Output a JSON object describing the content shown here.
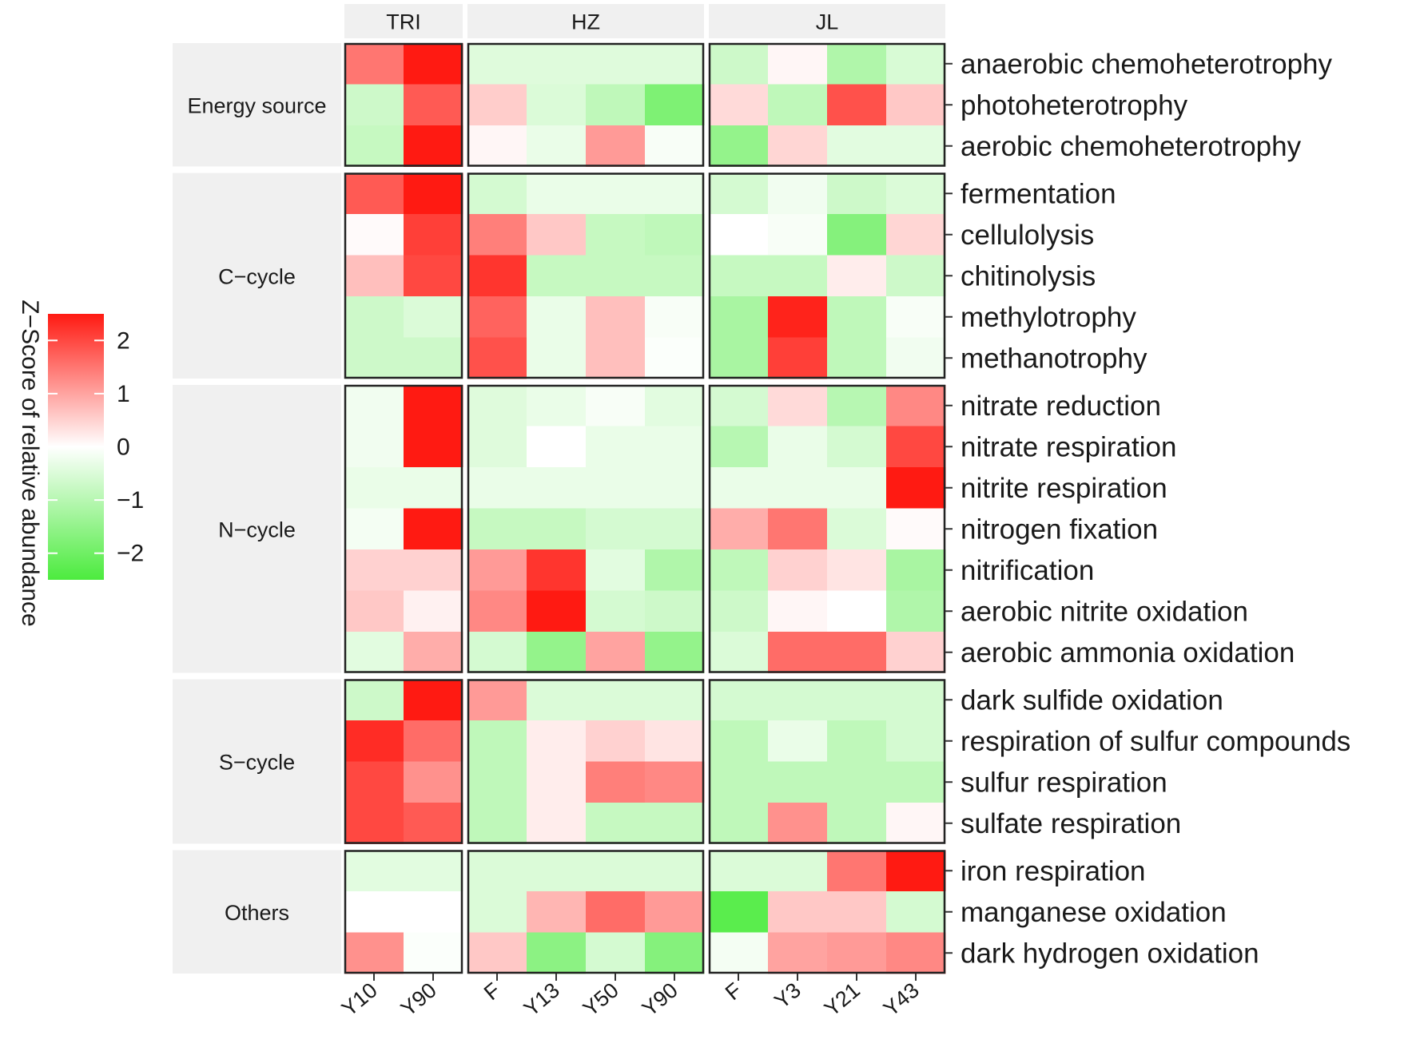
{
  "chart_data": {
    "type": "heatmap",
    "title": "",
    "legend": {
      "title": "Z−Score of relative abundance",
      "ticks": [
        2,
        1,
        0,
        -1,
        -2
      ],
      "tick_labels": [
        "2",
        "1",
        "0",
        "−1",
        "−2"
      ],
      "range": [
        -2.5,
        2.5
      ],
      "colors": {
        "low": "#4ceb3e",
        "mid": "#ffffff",
        "high": "#ff1a12"
      }
    },
    "column_groups": [
      {
        "name": "TRI",
        "columns": [
          "Y10",
          "Y90"
        ]
      },
      {
        "name": "HZ",
        "columns": [
          "F",
          "Y13",
          "Y50",
          "Y90"
        ]
      },
      {
        "name": "JL",
        "columns": [
          "F",
          "Y3",
          "Y21",
          "Y43"
        ]
      }
    ],
    "row_groups": [
      {
        "name": "Energy source",
        "rows": [
          "anaerobic chemoheterotrophy",
          "photoheterotrophy",
          "aerobic chemoheterotrophy"
        ],
        "values": [
          [
            1.5,
            2.8,
            -0.45,
            -0.45,
            -0.45,
            -0.45,
            -0.7,
            0.1,
            -1.1,
            -0.55
          ],
          [
            -0.7,
            1.8,
            0.55,
            -0.5,
            -0.9,
            -1.8,
            0.4,
            -0.9,
            1.9,
            0.6
          ],
          [
            -0.8,
            2.9,
            0.1,
            -0.3,
            1.1,
            -0.1,
            -1.5,
            0.45,
            -0.4,
            -0.4
          ]
        ]
      },
      {
        "name": "C−cycle",
        "rows": [
          "fermentation",
          "cellulolysis",
          "chitinolysis",
          "methylotrophy",
          "methanotrophy"
        ],
        "values": [
          [
            1.8,
            2.8,
            -0.6,
            -0.3,
            -0.3,
            -0.3,
            -0.6,
            -0.2,
            -0.7,
            -0.5
          ],
          [
            0.05,
            2.1,
            1.4,
            0.6,
            -0.8,
            -0.9,
            0.0,
            -0.1,
            -1.7,
            0.45
          ],
          [
            0.7,
            2.0,
            2.2,
            -0.8,
            -0.8,
            -0.8,
            -0.8,
            -0.8,
            0.2,
            -0.7
          ],
          [
            -0.7,
            -0.5,
            1.7,
            -0.3,
            0.7,
            -0.1,
            -1.2,
            2.4,
            -0.9,
            -0.1
          ],
          [
            -0.7,
            -0.7,
            1.9,
            -0.3,
            0.7,
            -0.05,
            -1.2,
            2.1,
            -0.9,
            -0.2
          ]
        ]
      },
      {
        "name": "N−cycle",
        "rows": [
          "nitrate reduction",
          "nitrate respiration",
          "nitrite respiration",
          "nitrogen fixation",
          "nitrification",
          "aerobic nitrite oxidation",
          "aerobic ammonia oxidation"
        ],
        "values": [
          [
            -0.2,
            2.9,
            -0.45,
            -0.3,
            -0.1,
            -0.4,
            -0.6,
            0.4,
            -1.0,
            1.3
          ],
          [
            -0.2,
            2.6,
            -0.45,
            0.0,
            -0.3,
            -0.3,
            -1.0,
            -0.3,
            -0.6,
            2.0
          ],
          [
            -0.3,
            -0.3,
            -0.3,
            -0.3,
            -0.3,
            -0.3,
            -0.3,
            -0.3,
            -0.3,
            3.4
          ],
          [
            -0.15,
            2.7,
            -0.8,
            -0.8,
            -0.6,
            -0.6,
            0.9,
            1.5,
            -0.5,
            0.05
          ],
          [
            0.5,
            0.5,
            1.1,
            2.2,
            -0.4,
            -1.1,
            -0.9,
            0.5,
            0.3,
            -1.2
          ],
          [
            0.6,
            0.15,
            1.3,
            2.7,
            -0.6,
            -0.7,
            -0.7,
            0.1,
            0.0,
            -1.1
          ],
          [
            -0.4,
            0.9,
            -0.6,
            -1.5,
            1.0,
            -1.5,
            -0.5,
            1.6,
            1.6,
            0.5
          ]
        ]
      },
      {
        "name": "S−cycle",
        "rows": [
          "dark sulfide oxidation",
          "respiration of sulfur compounds",
          "sulfur respiration",
          "sulfate respiration"
        ],
        "values": [
          [
            -0.7,
            3.2,
            1.1,
            -0.5,
            -0.5,
            -0.5,
            -0.6,
            -0.6,
            -0.6,
            -0.6
          ],
          [
            2.3,
            1.6,
            -0.9,
            0.2,
            0.5,
            0.3,
            -0.9,
            -0.3,
            -0.9,
            -0.6
          ],
          [
            2.0,
            1.2,
            -0.9,
            0.2,
            1.4,
            1.3,
            -0.9,
            -0.9,
            -0.9,
            -0.9
          ],
          [
            2.0,
            1.8,
            -0.9,
            0.2,
            -0.8,
            -0.8,
            -0.9,
            1.2,
            -0.9,
            0.1
          ]
        ]
      },
      {
        "name": "Others",
        "rows": [
          "iron respiration",
          "manganese oxidation",
          "dark hydrogen oxidation"
        ],
        "values": [
          [
            -0.4,
            -0.4,
            -0.5,
            -0.5,
            -0.5,
            -0.5,
            -0.5,
            -0.5,
            1.5,
            2.8
          ],
          [
            0.0,
            0.0,
            -0.5,
            0.8,
            1.6,
            1.1,
            -2.3,
            0.6,
            0.6,
            -0.6
          ],
          [
            1.2,
            -0.05,
            0.6,
            -1.6,
            -0.6,
            -1.7,
            -0.15,
            1.0,
            1.1,
            1.3
          ]
        ]
      }
    ]
  }
}
